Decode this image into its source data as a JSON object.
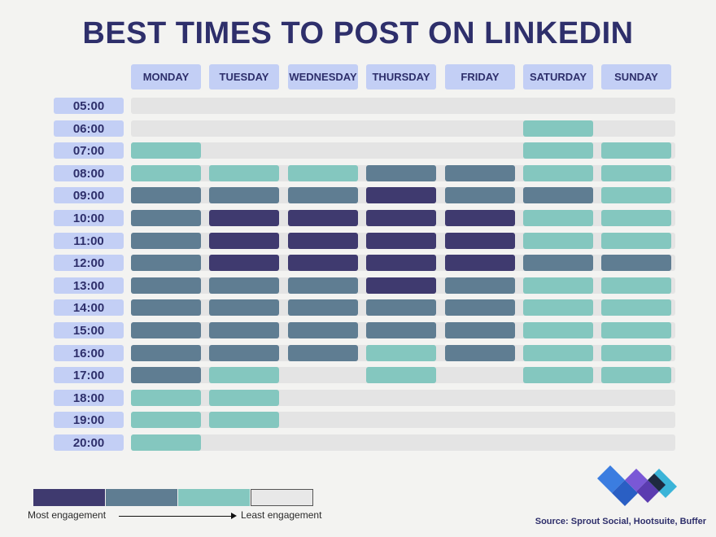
{
  "title": "BEST TIMES TO POST ON LINKEDIN",
  "chart_data": {
    "type": "heatmap",
    "title": "BEST TIMES TO POST ON LINKEDIN",
    "days": [
      "MONDAY",
      "TUESDAY",
      "WEDNESDAY",
      "THURSDAY",
      "FRIDAY",
      "SATURDAY",
      "SUNDAY"
    ],
    "times": [
      "05:00",
      "06:00",
      "07:00",
      "08:00",
      "09:00",
      "10:00",
      "11:00",
      "12:00",
      "13:00",
      "14:00",
      "15:00",
      "16:00",
      "17:00",
      "18:00",
      "19:00",
      "20:00"
    ],
    "level_scale": "0 = least engagement, 3 = most engagement",
    "levels": [
      [
        0,
        0,
        0,
        0,
        0,
        0,
        0
      ],
      [
        0,
        0,
        0,
        0,
        0,
        1,
        0
      ],
      [
        1,
        0,
        0,
        0,
        0,
        1,
        1
      ],
      [
        1,
        1,
        1,
        2,
        2,
        1,
        1
      ],
      [
        2,
        2,
        2,
        3,
        2,
        2,
        1
      ],
      [
        2,
        3,
        3,
        3,
        3,
        1,
        1
      ],
      [
        2,
        3,
        3,
        3,
        3,
        1,
        1
      ],
      [
        2,
        3,
        3,
        3,
        3,
        2,
        2
      ],
      [
        2,
        2,
        2,
        3,
        2,
        1,
        1
      ],
      [
        2,
        2,
        2,
        2,
        2,
        1,
        1
      ],
      [
        2,
        2,
        2,
        2,
        2,
        1,
        1
      ],
      [
        2,
        2,
        2,
        1,
        2,
        1,
        1
      ],
      [
        2,
        1,
        0,
        1,
        0,
        1,
        1
      ],
      [
        1,
        1,
        0,
        0,
        0,
        0,
        0
      ],
      [
        1,
        1,
        0,
        0,
        0,
        0,
        0
      ],
      [
        1,
        0,
        0,
        0,
        0,
        0,
        0
      ]
    ],
    "level_colors": [
      "#e4e4e4",
      "#84c7bf",
      "#5f7d92",
      "#3f3a6f"
    ]
  },
  "legend": {
    "most_label": "Most engagement",
    "least_label": "Least engagement",
    "colors": [
      "#3f3a6f",
      "#5f7d92",
      "#84c7bf",
      "#e8e8e8"
    ]
  },
  "source": "Source: Sprout Social, Hootsuite, Buffer",
  "colors": {
    "title": "#2e2f6b",
    "header_bg": "#c3cff5",
    "background": "#f3f3f1"
  }
}
